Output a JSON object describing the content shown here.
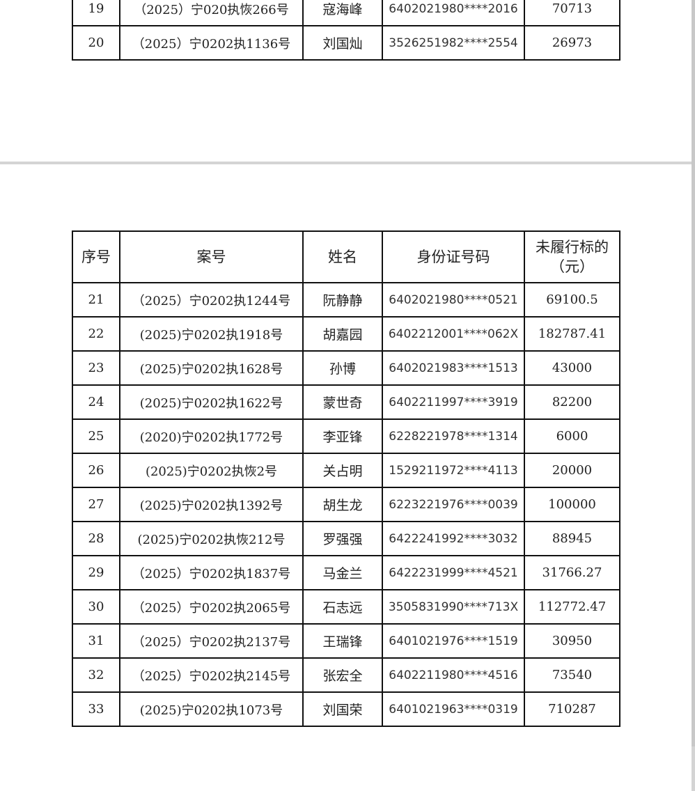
{
  "headers": [
    "序号",
    "案号",
    "姓名",
    "身份证号码",
    "未履行标的（元）"
  ],
  "page1_rows": [
    [
      "19",
      "（2025）宁020执恢266号",
      "寇海峰",
      "6402021980****2016",
      "70713"
    ],
    [
      "20",
      "（2025）宁0202执1136号",
      "刘国灿",
      "3526251982****2554",
      "26973"
    ]
  ],
  "page2_rows": [
    [
      "21",
      "（2025）宁0202执1244号",
      "阮静静",
      "6402021980****0521",
      "69100.5"
    ],
    [
      "22",
      "(2025)宁0202执1918号",
      "胡嘉园",
      "6402212001****062X",
      "182787.41"
    ],
    [
      "23",
      "(2025)宁0202执1628号",
      "孙博",
      "6402021983****1513",
      "43000"
    ],
    [
      "24",
      "(2025)宁0202执1622号",
      "蒙世奇",
      "6402211997****3919",
      "82200"
    ],
    [
      "25",
      "(2020)宁0202执1772号",
      "李亚锋",
      "6228221978****1314",
      "6000"
    ],
    [
      "26",
      "(2025)宁0202执恢2号",
      "关占明",
      "1529211972****4113",
      "20000"
    ],
    [
      "27",
      "(2025)宁0202执1392号",
      "胡生龙",
      "6223221976****0039",
      "100000"
    ],
    [
      "28",
      "(2025)宁0202执恢212号",
      "罗强强",
      "6422241992****3032",
      "88945"
    ],
    [
      "29",
      "（2025）宁0202执1837号",
      "马金兰",
      "6422231999****4521",
      "31766.27"
    ],
    [
      "30",
      "（2025）宁0202执2065号",
      "石志远",
      "3505831990****713X",
      "112772.47"
    ],
    [
      "31",
      "（2025）宁0202执2137号",
      "王瑞锋",
      "6401021976****1519",
      "30950"
    ],
    [
      "32",
      "（2025）宁0202执2145号",
      "张宏全",
      "6402211980****4516",
      "73540"
    ],
    [
      "33",
      "(2025)宁0202执1073号",
      "刘国荣",
      "6401021963****0319",
      "710287"
    ]
  ]
}
